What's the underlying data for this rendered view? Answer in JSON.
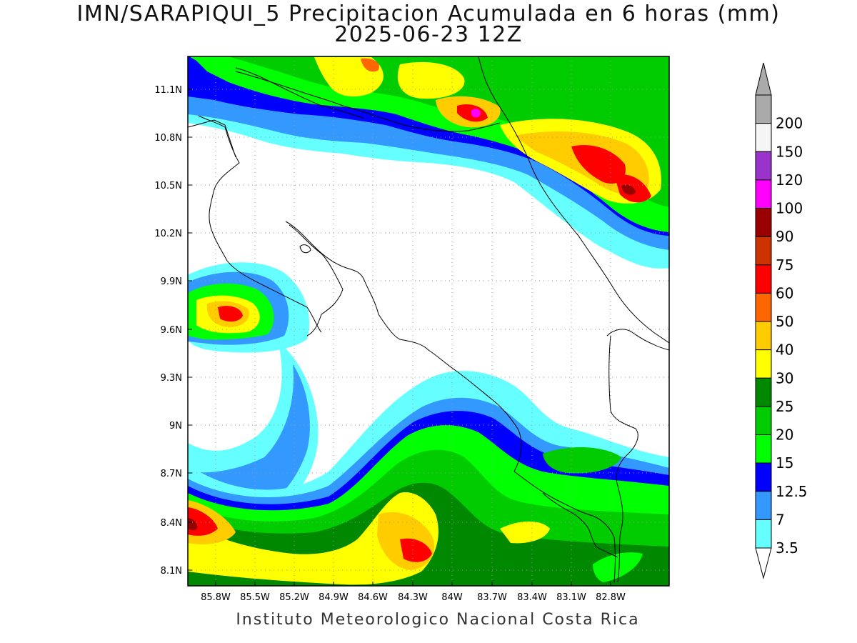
{
  "title_line1": "IMN/SARAPIQUI_5 Precipitacion Acumulada en 6 horas (mm)",
  "title_line2": "2025-06-23 12Z",
  "footer": "Instituto Meteorologico Nacional Costa Rica",
  "map": {
    "lat_ticks": [
      "11.1N",
      "10.8N",
      "10.5N",
      "10.2N",
      "9.9N",
      "9.6N",
      "9.3N",
      "9N",
      "8.7N",
      "8.4N",
      "8.1N"
    ],
    "lon_ticks": [
      "85.8W",
      "85.5W",
      "85.2W",
      "84.9W",
      "84.6W",
      "84.3W",
      "84W",
      "83.7W",
      "83.4W",
      "83.1W",
      "82.8W"
    ]
  },
  "colorbar": {
    "levels": [
      "3.5",
      "7",
      "12.5",
      "15",
      "20",
      "25",
      "30",
      "40",
      "50",
      "60",
      "75",
      "90",
      "100",
      "120",
      "150",
      "200"
    ],
    "colors": [
      "#66ffff",
      "#3399ff",
      "#0000ff",
      "#00ff00",
      "#00cc00",
      "#008800",
      "#ffff00",
      "#ffcc00",
      "#ff6600",
      "#ff0000",
      "#cc3300",
      "#990000",
      "#ff00ff",
      "#9933cc",
      "#f5f5f5",
      "#aaaaaa"
    ]
  },
  "palette": {
    "c35": "#66ffff",
    "c7": "#3399ff",
    "c125": "#0000ff",
    "c15": "#00ff00",
    "c20": "#00cc00",
    "c25": "#008800",
    "c30": "#ffff00",
    "c40": "#ffcc00",
    "c50": "#ff6600",
    "c60": "#ff0000",
    "c75": "#cc3300",
    "c90": "#990000",
    "c100": "#ff00ff",
    "c120": "#9933cc"
  }
}
